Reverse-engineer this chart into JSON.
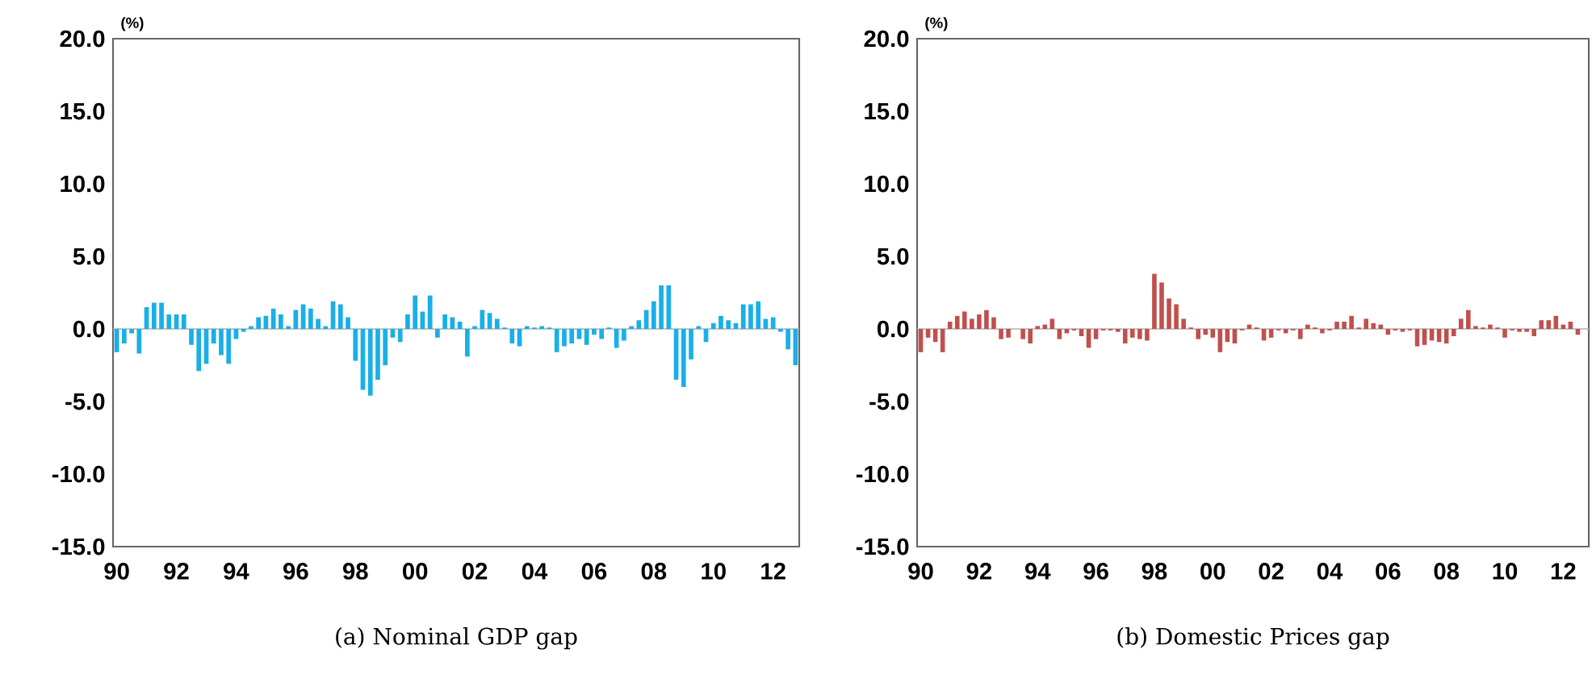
{
  "chart_data": [
    {
      "type": "bar",
      "title": "(a) Nominal GDP gap",
      "ylabel": "(%)",
      "color": "#1aafe6",
      "categories": [
        "90",
        null,
        null,
        null,
        null,
        null,
        null,
        null,
        "92",
        null,
        null,
        null,
        null,
        null,
        null,
        null,
        "94",
        null,
        null,
        null,
        null,
        null,
        null,
        null,
        "96",
        null,
        null,
        null,
        null,
        null,
        null,
        null,
        "98",
        null,
        null,
        null,
        null,
        null,
        null,
        null,
        "00",
        null,
        null,
        null,
        null,
        null,
        null,
        null,
        "02",
        null,
        null,
        null,
        null,
        null,
        null,
        null,
        "04",
        null,
        null,
        null,
        null,
        null,
        null,
        null,
        "06",
        null,
        null,
        null,
        null,
        null,
        null,
        null,
        "08",
        null,
        null,
        null,
        null,
        null,
        null,
        null,
        "10",
        null,
        null,
        null,
        null,
        null,
        null,
        null,
        "12",
        null,
        null,
        null
      ],
      "values": [
        -1.6,
        -1.0,
        -0.3,
        -1.7,
        1.5,
        1.8,
        1.8,
        1.0,
        1.0,
        1.0,
        -1.1,
        -2.9,
        -2.4,
        -1.0,
        -1.8,
        -2.4,
        -0.7,
        -0.2,
        0.2,
        0.8,
        0.9,
        1.4,
        1.0,
        0.2,
        1.3,
        1.7,
        1.4,
        0.7,
        0.2,
        1.9,
        1.7,
        0.8,
        -2.2,
        -4.2,
        -4.6,
        -3.5,
        -2.5,
        -0.6,
        -0.9,
        1.0,
        2.3,
        1.2,
        2.3,
        -0.6,
        1.0,
        0.8,
        0.5,
        -1.9,
        0.2,
        1.3,
        1.1,
        0.7,
        0.1,
        -1.0,
        -1.2,
        0.2,
        0.1,
        0.2,
        0.1,
        -1.6,
        -1.2,
        -1.0,
        -0.7,
        -1.1,
        -0.4,
        -0.7,
        0.1,
        -1.3,
        -0.8,
        0.2,
        0.6,
        1.3,
        1.9,
        3.0,
        3.0,
        -3.5,
        -4.0,
        -2.1,
        0.2,
        -0.9,
        0.4,
        0.9,
        0.6,
        0.4,
        1.7,
        1.7,
        1.9,
        0.7,
        0.8,
        -0.2,
        -1.4,
        -2.5
      ],
      "ylim": [
        -15,
        20
      ],
      "yticks": [
        {
          "value": -15,
          "label": "-15.0"
        },
        {
          "value": -10,
          "label": "-10.0"
        },
        {
          "value": -5,
          "label": "-5.0"
        },
        {
          "value": 0,
          "label": "0.0"
        },
        {
          "value": 5,
          "label": "5.0"
        },
        {
          "value": 10,
          "label": "10.0"
        },
        {
          "value": 15,
          "label": "15.0"
        },
        {
          "value": 20,
          "label": "20.0"
        }
      ]
    },
    {
      "type": "bar",
      "title": "(b) Domestic Prices gap",
      "ylabel": "(%)",
      "color": "#c0504d",
      "categories": [
        "90",
        null,
        null,
        null,
        null,
        null,
        null,
        null,
        "92",
        null,
        null,
        null,
        null,
        null,
        null,
        null,
        "94",
        null,
        null,
        null,
        null,
        null,
        null,
        null,
        "96",
        null,
        null,
        null,
        null,
        null,
        null,
        null,
        "98",
        null,
        null,
        null,
        null,
        null,
        null,
        null,
        "00",
        null,
        null,
        null,
        null,
        null,
        null,
        null,
        "02",
        null,
        null,
        null,
        null,
        null,
        null,
        null,
        "04",
        null,
        null,
        null,
        null,
        null,
        null,
        null,
        "06",
        null,
        null,
        null,
        null,
        null,
        null,
        null,
        "08",
        null,
        null,
        null,
        null,
        null,
        null,
        null,
        "10",
        null,
        null,
        null,
        null,
        null,
        null,
        null,
        "12",
        null,
        null,
        null
      ],
      "values": [
        -1.6,
        -0.6,
        -0.9,
        -1.6,
        0.5,
        0.9,
        1.2,
        0.7,
        1.0,
        1.3,
        0.8,
        -0.7,
        -0.6,
        0.0,
        -0.7,
        -1.0,
        0.2,
        0.3,
        0.7,
        -0.7,
        -0.3,
        -0.1,
        -0.5,
        -1.3,
        -0.7,
        -0.1,
        -0.1,
        -0.2,
        -1.0,
        -0.6,
        -0.7,
        -0.8,
        3.8,
        3.2,
        2.1,
        1.7,
        0.7,
        0.1,
        -0.7,
        -0.4,
        -0.6,
        -1.6,
        -0.9,
        -1.0,
        -0.1,
        0.3,
        0.1,
        -0.8,
        -0.6,
        -0.1,
        -0.3,
        -0.1,
        -0.7,
        0.3,
        0.1,
        -0.3,
        -0.1,
        0.5,
        0.5,
        0.9,
        0.1,
        0.7,
        0.4,
        0.3,
        -0.4,
        -0.1,
        -0.2,
        -0.1,
        -1.2,
        -1.1,
        -0.8,
        -0.9,
        -1.0,
        -0.5,
        0.7,
        1.3,
        0.2,
        0.1,
        0.3,
        0.1,
        -0.6,
        -0.1,
        -0.2,
        -0.2,
        -0.5,
        0.6,
        0.6,
        0.9,
        0.3,
        0.5,
        -0.4,
        null
      ],
      "ylim": [
        -15,
        20
      ],
      "yticks": [
        {
          "value": -15,
          "label": "-15.0"
        },
        {
          "value": -10,
          "label": "-10.0"
        },
        {
          "value": -5,
          "label": "-5.0"
        },
        {
          "value": 0,
          "label": "0.0"
        },
        {
          "value": 5,
          "label": "5.0"
        },
        {
          "value": 10,
          "label": "10.0"
        },
        {
          "value": 15,
          "label": "15.0"
        },
        {
          "value": 20,
          "label": "20.0"
        }
      ]
    }
  ]
}
